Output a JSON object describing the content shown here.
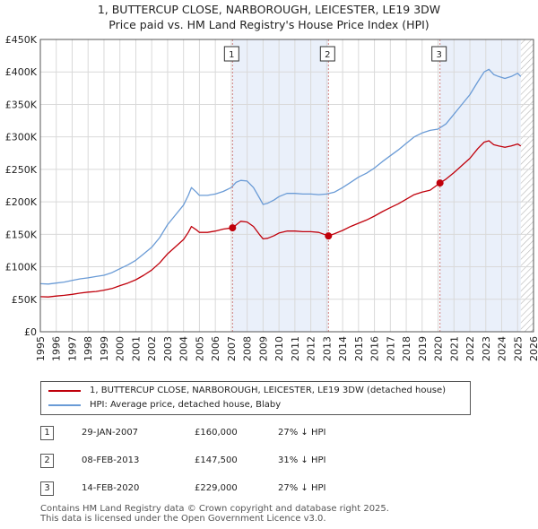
{
  "title_line1": "1, BUTTERCUP CLOSE, NARBOROUGH, LEICESTER, LE19 3DW",
  "title_line2": "Price paid vs. HM Land Registry's House Price Index (HPI)",
  "chart_data": {
    "type": "line",
    "title": "Price paid vs. HM Land Registry's House Price Index (HPI)",
    "xlabel": "",
    "ylabel": "",
    "xlim": [
      1995,
      2026
    ],
    "ylim": [
      0,
      450000
    ],
    "x_ticks": [
      "1995",
      "1996",
      "1997",
      "1998",
      "1999",
      "2000",
      "2001",
      "2002",
      "2003",
      "2004",
      "2005",
      "2006",
      "2007",
      "2008",
      "2009",
      "2010",
      "2011",
      "2012",
      "2013",
      "2014",
      "2015",
      "2016",
      "2017",
      "2018",
      "2019",
      "2020",
      "2021",
      "2022",
      "2023",
      "2024",
      "2025",
      "2026"
    ],
    "y_ticks": [
      {
        "value": 0,
        "label": "£0"
      },
      {
        "value": 50000,
        "label": "£50K"
      },
      {
        "value": 100000,
        "label": "£100K"
      },
      {
        "value": 150000,
        "label": "£150K"
      },
      {
        "value": 200000,
        "label": "£200K"
      },
      {
        "value": 250000,
        "label": "£250K"
      },
      {
        "value": 300000,
        "label": "£300K"
      },
      {
        "value": 350000,
        "label": "£350K"
      },
      {
        "value": 400000,
        "label": "£400K"
      },
      {
        "value": 450000,
        "label": "£450K"
      }
    ],
    "grid": true,
    "shaded_periods": [
      {
        "start": 2007.08,
        "end": 2013.11
      },
      {
        "start": 2020.12,
        "end": 2025.2
      }
    ],
    "hatched_after": 2025.2,
    "series": [
      {
        "name": "hpi",
        "color": "#6a9bd6",
        "points": [
          [
            1995.0,
            74000
          ],
          [
            1995.5,
            73500
          ],
          [
            1996.0,
            75000
          ],
          [
            1996.5,
            76500
          ],
          [
            1997.0,
            79000
          ],
          [
            1997.5,
            81500
          ],
          [
            1998.0,
            83000
          ],
          [
            1998.5,
            85000
          ],
          [
            1999.0,
            87000
          ],
          [
            1999.5,
            91000
          ],
          [
            2000.0,
            97000
          ],
          [
            2000.5,
            103000
          ],
          [
            2001.0,
            110000
          ],
          [
            2001.5,
            120000
          ],
          [
            2002.0,
            130000
          ],
          [
            2002.5,
            145000
          ],
          [
            2003.0,
            165000
          ],
          [
            2003.5,
            180000
          ],
          [
            2004.0,
            195000
          ],
          [
            2004.3,
            210000
          ],
          [
            2004.5,
            222000
          ],
          [
            2004.8,
            215000
          ],
          [
            2005.0,
            210000
          ],
          [
            2005.5,
            210000
          ],
          [
            2006.0,
            212000
          ],
          [
            2006.5,
            216000
          ],
          [
            2007.0,
            222000
          ],
          [
            2007.3,
            230000
          ],
          [
            2007.6,
            233000
          ],
          [
            2008.0,
            232000
          ],
          [
            2008.4,
            222000
          ],
          [
            2008.8,
            205000
          ],
          [
            2009.0,
            196000
          ],
          [
            2009.3,
            198000
          ],
          [
            2009.7,
            203000
          ],
          [
            2010.0,
            208000
          ],
          [
            2010.5,
            213000
          ],
          [
            2011.0,
            213000
          ],
          [
            2011.5,
            212000
          ],
          [
            2012.0,
            212000
          ],
          [
            2012.5,
            211000
          ],
          [
            2013.0,
            212000
          ],
          [
            2013.5,
            215000
          ],
          [
            2014.0,
            222000
          ],
          [
            2014.5,
            230000
          ],
          [
            2015.0,
            238000
          ],
          [
            2015.5,
            244000
          ],
          [
            2016.0,
            252000
          ],
          [
            2016.5,
            262000
          ],
          [
            2017.0,
            271000
          ],
          [
            2017.5,
            280000
          ],
          [
            2018.0,
            290000
          ],
          [
            2018.5,
            300000
          ],
          [
            2019.0,
            306000
          ],
          [
            2019.5,
            310000
          ],
          [
            2020.0,
            312000
          ],
          [
            2020.5,
            320000
          ],
          [
            2021.0,
            335000
          ],
          [
            2021.5,
            350000
          ],
          [
            2022.0,
            365000
          ],
          [
            2022.5,
            385000
          ],
          [
            2022.9,
            400000
          ],
          [
            2023.2,
            404000
          ],
          [
            2023.5,
            396000
          ],
          [
            2023.8,
            393000
          ],
          [
            2024.2,
            390000
          ],
          [
            2024.6,
            393000
          ],
          [
            2025.0,
            398000
          ],
          [
            2025.2,
            393000
          ]
        ]
      },
      {
        "name": "property",
        "color": "#c0000b",
        "points": [
          [
            1995.0,
            54000
          ],
          [
            1995.5,
            53500
          ],
          [
            1996.0,
            55000
          ],
          [
            1996.5,
            56000
          ],
          [
            1997.0,
            57500
          ],
          [
            1997.5,
            59500
          ],
          [
            1998.0,
            61000
          ],
          [
            1998.5,
            62000
          ],
          [
            1999.0,
            64000
          ],
          [
            1999.5,
            66500
          ],
          [
            2000.0,
            71000
          ],
          [
            2000.5,
            75000
          ],
          [
            2001.0,
            80000
          ],
          [
            2001.5,
            87000
          ],
          [
            2002.0,
            95000
          ],
          [
            2002.5,
            106000
          ],
          [
            2003.0,
            120000
          ],
          [
            2003.5,
            131000
          ],
          [
            2004.0,
            142000
          ],
          [
            2004.3,
            153000
          ],
          [
            2004.5,
            162000
          ],
          [
            2004.8,
            157000
          ],
          [
            2005.0,
            153000
          ],
          [
            2005.5,
            153000
          ],
          [
            2006.0,
            155000
          ],
          [
            2006.5,
            158000
          ],
          [
            2007.08,
            160000
          ],
          [
            2007.6,
            170000
          ],
          [
            2008.0,
            169000
          ],
          [
            2008.4,
            162000
          ],
          [
            2008.8,
            149000
          ],
          [
            2009.0,
            143000
          ],
          [
            2009.3,
            144000
          ],
          [
            2009.7,
            148000
          ],
          [
            2010.0,
            152000
          ],
          [
            2010.5,
            155000
          ],
          [
            2011.0,
            155000
          ],
          [
            2011.5,
            154000
          ],
          [
            2012.0,
            154000
          ],
          [
            2012.5,
            153000
          ],
          [
            2013.11,
            147500
          ],
          [
            2013.5,
            151000
          ],
          [
            2014.0,
            156000
          ],
          [
            2014.5,
            162000
          ],
          [
            2015.0,
            167000
          ],
          [
            2015.5,
            172000
          ],
          [
            2016.0,
            178000
          ],
          [
            2016.5,
            185000
          ],
          [
            2017.0,
            191000
          ],
          [
            2017.5,
            197000
          ],
          [
            2018.0,
            204000
          ],
          [
            2018.5,
            211000
          ],
          [
            2019.0,
            215000
          ],
          [
            2019.5,
            218000
          ],
          [
            2020.12,
            229000
          ],
          [
            2020.5,
            235000
          ],
          [
            2021.0,
            245000
          ],
          [
            2021.5,
            256000
          ],
          [
            2022.0,
            267000
          ],
          [
            2022.5,
            282000
          ],
          [
            2022.9,
            292000
          ],
          [
            2023.2,
            294000
          ],
          [
            2023.5,
            288000
          ],
          [
            2023.8,
            286000
          ],
          [
            2024.2,
            284000
          ],
          [
            2024.6,
            286000
          ],
          [
            2025.0,
            289000
          ],
          [
            2025.2,
            286000
          ]
        ]
      }
    ],
    "annotations": [
      {
        "label": "1",
        "x": 2007.08,
        "y": 160000
      },
      {
        "label": "2",
        "x": 2013.11,
        "y": 147500
      },
      {
        "label": "3",
        "x": 2020.12,
        "y": 229000
      }
    ]
  },
  "legend": {
    "items": [
      {
        "label": "1, BUTTERCUP CLOSE, NARBOROUGH, LEICESTER, LE19 3DW (detached house)",
        "color": "#c0000b"
      },
      {
        "label": "HPI: Average price, detached house, Blaby",
        "color": "#6a9bd6"
      }
    ]
  },
  "transactions": [
    {
      "num": "1",
      "date": "29-JAN-2007",
      "price": "£160,000",
      "hpi": "27% ↓ HPI"
    },
    {
      "num": "2",
      "date": "08-FEB-2013",
      "price": "£147,500",
      "hpi": "31% ↓ HPI"
    },
    {
      "num": "3",
      "date": "14-FEB-2020",
      "price": "£229,000",
      "hpi": "27% ↓ HPI"
    }
  ],
  "footer": {
    "line1": "Contains HM Land Registry data © Crown copyright and database right 2025.",
    "line2": "This data is licensed under the Open Government Licence v3.0."
  }
}
